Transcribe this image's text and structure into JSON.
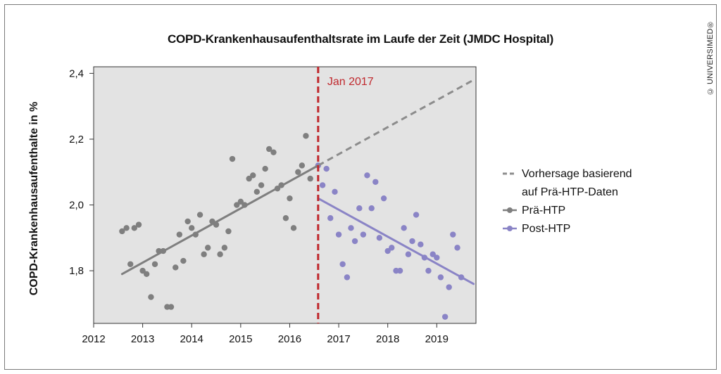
{
  "copyright": "© UNIVERSIMED®",
  "chart_data": {
    "type": "scatter",
    "title": "COPD-Krankenhausaufenthaltsrate im Laufe der Zeit (JMDC Hospital)",
    "xlabel": "",
    "ylabel": "COPD-Krankenhausaufenthalte in %",
    "xlim": [
      2012,
      2019.8
    ],
    "ylim": [
      1.64,
      2.42
    ],
    "x_ticks": [
      2012,
      2013,
      2014,
      2015,
      2016,
      2017,
      2018,
      2019
    ],
    "x_tick_labels": [
      "2012",
      "2013",
      "2014",
      "2015",
      "2016",
      "2017",
      "2018",
      "2019"
    ],
    "y_ticks": [
      1.8,
      2.0,
      2.2,
      2.4
    ],
    "y_tick_labels": [
      "1,8",
      "2,0",
      "2,2",
      "2,4"
    ],
    "grid": false,
    "background": "#e3e3e3",
    "annotation": {
      "x": 2016.58,
      "label": "Jan 2017",
      "color": "#c0282d"
    },
    "legend_position": "right",
    "series": [
      {
        "name": "Prä-HTP",
        "color": "#7f7f7f",
        "points": [
          [
            2012.58,
            1.92
          ],
          [
            2012.67,
            1.93
          ],
          [
            2012.75,
            1.82
          ],
          [
            2012.83,
            1.93
          ],
          [
            2012.92,
            1.94
          ],
          [
            2013.0,
            1.8
          ],
          [
            2013.08,
            1.79
          ],
          [
            2013.17,
            1.72
          ],
          [
            2013.25,
            1.82
          ],
          [
            2013.33,
            1.86
          ],
          [
            2013.42,
            1.86
          ],
          [
            2013.5,
            1.69
          ],
          [
            2013.58,
            1.69
          ],
          [
            2013.67,
            1.81
          ],
          [
            2013.75,
            1.91
          ],
          [
            2013.83,
            1.83
          ],
          [
            2013.92,
            1.95
          ],
          [
            2014.0,
            1.93
          ],
          [
            2014.08,
            1.91
          ],
          [
            2014.17,
            1.97
          ],
          [
            2014.25,
            1.85
          ],
          [
            2014.33,
            1.87
          ],
          [
            2014.42,
            1.95
          ],
          [
            2014.5,
            1.94
          ],
          [
            2014.58,
            1.85
          ],
          [
            2014.67,
            1.87
          ],
          [
            2014.75,
            1.92
          ],
          [
            2014.83,
            2.14
          ],
          [
            2014.92,
            2.0
          ],
          [
            2015.0,
            2.01
          ],
          [
            2015.08,
            2.0
          ],
          [
            2015.17,
            2.08
          ],
          [
            2015.25,
            2.09
          ],
          [
            2015.33,
            2.04
          ],
          [
            2015.42,
            2.06
          ],
          [
            2015.5,
            2.11
          ],
          [
            2015.58,
            2.17
          ],
          [
            2015.67,
            2.16
          ],
          [
            2015.75,
            2.05
          ],
          [
            2015.83,
            2.06
          ],
          [
            2015.92,
            1.96
          ],
          [
            2016.0,
            2.02
          ],
          [
            2016.08,
            1.93
          ],
          [
            2016.17,
            2.1
          ],
          [
            2016.25,
            2.12
          ],
          [
            2016.33,
            2.21
          ],
          [
            2016.42,
            2.08
          ]
        ]
      },
      {
        "name": "Post-HTP",
        "color": "#8a84c6",
        "points": [
          [
            2016.58,
            2.12
          ],
          [
            2016.67,
            2.06
          ],
          [
            2016.75,
            2.11
          ],
          [
            2016.83,
            1.96
          ],
          [
            2016.92,
            2.04
          ],
          [
            2017.0,
            1.91
          ],
          [
            2017.08,
            1.82
          ],
          [
            2017.17,
            1.78
          ],
          [
            2017.25,
            1.93
          ],
          [
            2017.33,
            1.89
          ],
          [
            2017.42,
            1.99
          ],
          [
            2017.5,
            1.91
          ],
          [
            2017.58,
            2.09
          ],
          [
            2017.67,
            1.99
          ],
          [
            2017.75,
            2.07
          ],
          [
            2017.83,
            1.9
          ],
          [
            2017.92,
            2.02
          ],
          [
            2018.0,
            1.86
          ],
          [
            2018.08,
            1.87
          ],
          [
            2018.17,
            1.8
          ],
          [
            2018.25,
            1.8
          ],
          [
            2018.33,
            1.93
          ],
          [
            2018.42,
            1.85
          ],
          [
            2018.5,
            1.89
          ],
          [
            2018.58,
            1.97
          ],
          [
            2018.67,
            1.88
          ],
          [
            2018.75,
            1.84
          ],
          [
            2018.83,
            1.8
          ],
          [
            2018.92,
            1.85
          ],
          [
            2019.0,
            1.84
          ],
          [
            2019.08,
            1.78
          ],
          [
            2019.17,
            1.66
          ],
          [
            2019.25,
            1.75
          ],
          [
            2019.33,
            1.91
          ],
          [
            2019.42,
            1.87
          ],
          [
            2019.5,
            1.78
          ]
        ]
      },
      {
        "name": "Vorhersage basierend auf Prä-HTP-Daten",
        "color": "#8c8c8c",
        "dashed": true,
        "points": [
          [
            2016.58,
            2.12
          ],
          [
            2019.75,
            2.38
          ]
        ]
      }
    ],
    "trend_lines": [
      {
        "series": "Prä-HTP",
        "color": "#7f7f7f",
        "points": [
          [
            2012.58,
            1.79
          ],
          [
            2016.58,
            2.12
          ]
        ]
      },
      {
        "series": "Post-HTP",
        "color": "#8a84c6",
        "points": [
          [
            2016.58,
            2.02
          ],
          [
            2019.75,
            1.76
          ]
        ]
      }
    ],
    "legend": [
      {
        "label_lines": [
          "Vorhersage basierend",
          "auf Prä-HTP-Daten"
        ],
        "style": "dashed",
        "color": "#8c8c8c"
      },
      {
        "label_lines": [
          "Prä-HTP"
        ],
        "style": "line-dot",
        "color": "#7f7f7f"
      },
      {
        "label_lines": [
          "Post-HTP"
        ],
        "style": "line-dot",
        "color": "#8a84c6"
      }
    ]
  }
}
